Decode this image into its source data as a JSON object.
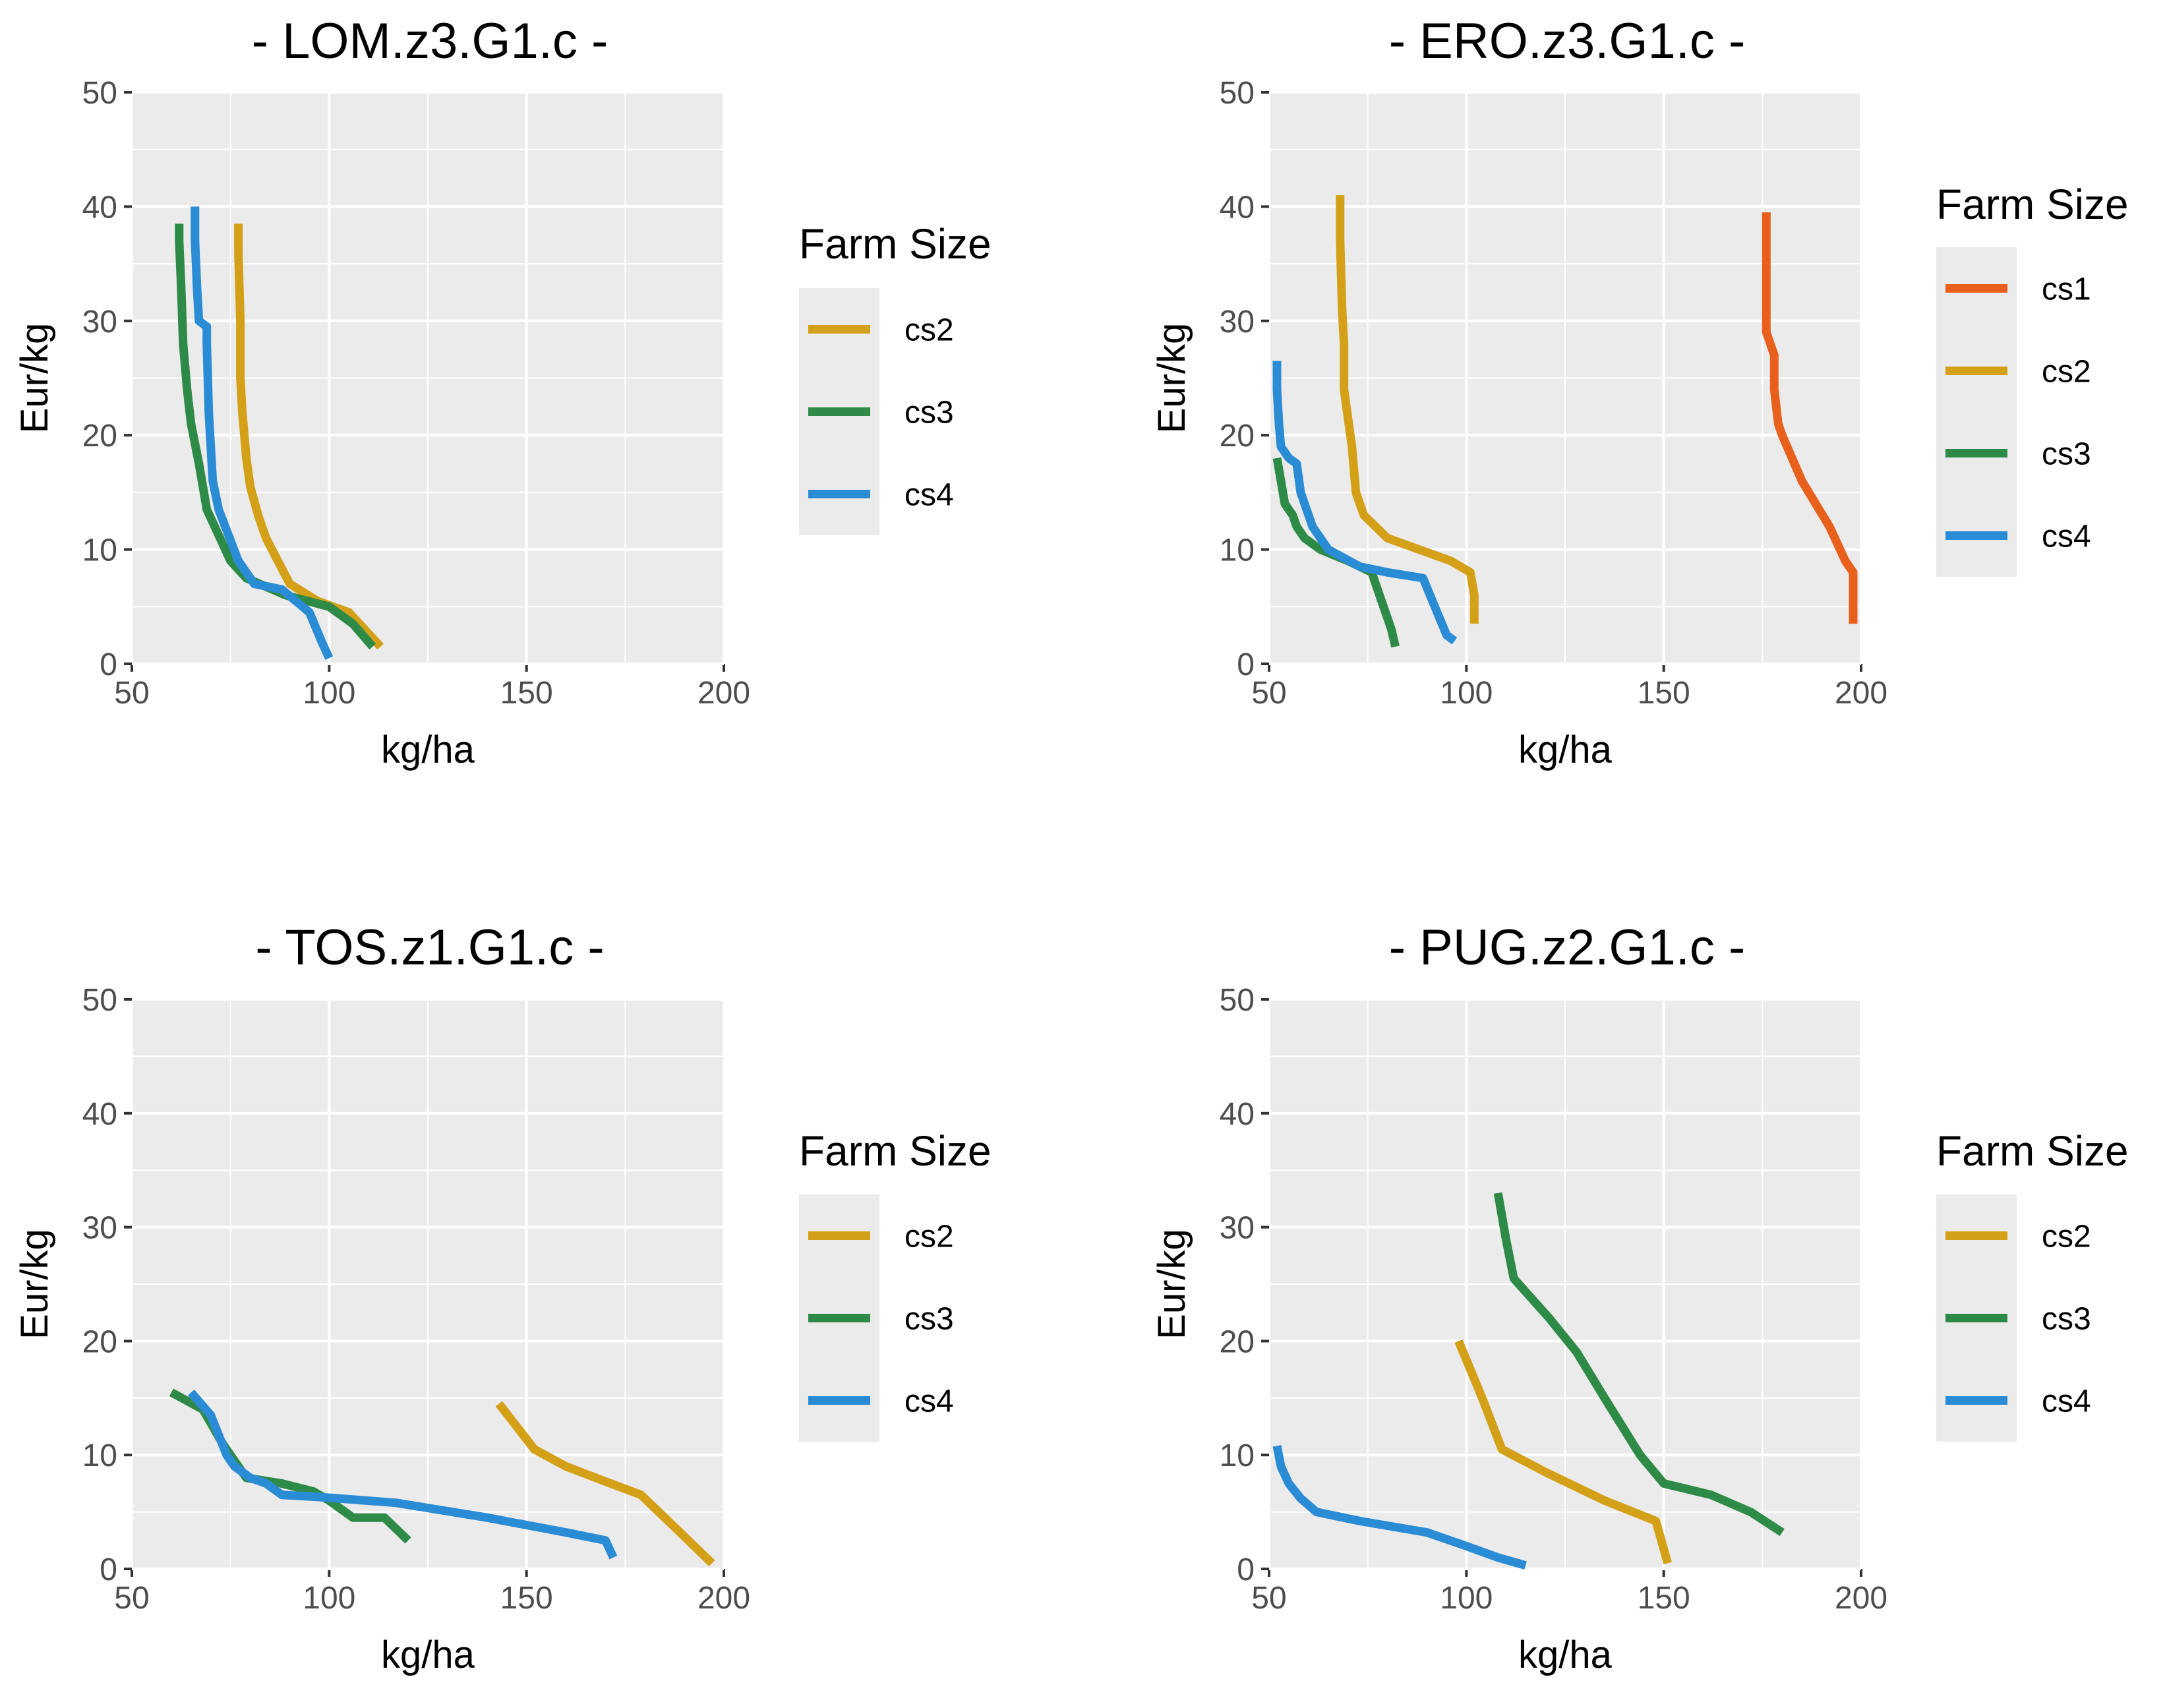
{
  "colors": {
    "cs1": "#E8601C",
    "cs2": "#D4A017",
    "cs3": "#2E8B47",
    "cs4": "#2B8CD6",
    "panel": "#EBEBEB",
    "grid": "#FFFFFF"
  },
  "chart_data": [
    {
      "type": "line",
      "title": "- LOM.z3.G1.c -",
      "xlabel": "kg/ha",
      "ylabel": "Eur/kg",
      "xlim": [
        50,
        200
      ],
      "ylim": [
        0,
        50
      ],
      "xticks": [
        "50",
        "100",
        "150",
        "200"
      ],
      "yticks": [
        "0",
        "10",
        "20",
        "30",
        "40",
        "50"
      ],
      "legend_title": "Farm Size",
      "series": [
        {
          "name": "cs2",
          "points": [
            [
              77,
              38.5
            ],
            [
              77,
              36
            ],
            [
              77.5,
              30
            ],
            [
              77.5,
              25
            ],
            [
              78,
              22
            ],
            [
              79,
              18
            ],
            [
              80,
              15.5
            ],
            [
              82,
              13
            ],
            [
              84,
              11
            ],
            [
              90,
              7
            ],
            [
              97,
              5.5
            ],
            [
              105,
              4.5
            ],
            [
              113,
              1.5
            ]
          ]
        },
        {
          "name": "cs3",
          "points": [
            [
              62,
              38.5
            ],
            [
              62,
              37
            ],
            [
              62.5,
              33
            ],
            [
              63,
              28
            ],
            [
              64,
              24
            ],
            [
              65,
              21
            ],
            [
              67,
              17.5
            ],
            [
              69,
              13.5
            ],
            [
              71,
              12
            ],
            [
              75,
              9
            ],
            [
              79,
              7.5
            ],
            [
              89,
              6
            ],
            [
              100,
              5
            ],
            [
              106,
              3.5
            ],
            [
              111,
              1.5
            ]
          ]
        },
        {
          "name": "cs4",
          "points": [
            [
              66,
              40
            ],
            [
              66,
              37
            ],
            [
              66.5,
              33
            ],
            [
              67,
              30
            ],
            [
              69,
              29.5
            ],
            [
              69,
              28
            ],
            [
              69.5,
              22
            ],
            [
              70,
              19
            ],
            [
              70.5,
              16
            ],
            [
              72,
              13.5
            ],
            [
              77,
              9
            ],
            [
              81,
              7
            ],
            [
              88,
              6.5
            ],
            [
              95,
              4.5
            ],
            [
              98,
              2
            ],
            [
              100,
              0.5
            ]
          ]
        }
      ]
    },
    {
      "type": "line",
      "title": "- ERO.z3.G1.c -",
      "xlabel": "kg/ha",
      "ylabel": "Eur/kg",
      "xlim": [
        50,
        200
      ],
      "ylim": [
        0,
        50
      ],
      "xticks": [
        "50",
        "100",
        "150",
        "200"
      ],
      "yticks": [
        "0",
        "10",
        "20",
        "30",
        "40",
        "50"
      ],
      "legend_title": "Farm Size",
      "series": [
        {
          "name": "cs1",
          "points": [
            [
              176,
              39.5
            ],
            [
              176,
              35
            ],
            [
              176,
              29
            ],
            [
              178,
              27
            ],
            [
              178,
              24
            ],
            [
              179,
              21
            ],
            [
              180,
              20
            ],
            [
              185,
              16
            ],
            [
              192,
              12
            ],
            [
              196,
              9
            ],
            [
              198,
              8
            ],
            [
              198,
              6
            ],
            [
              198,
              3.5
            ]
          ]
        },
        {
          "name": "cs2",
          "points": [
            [
              68,
              41
            ],
            [
              68,
              37
            ],
            [
              68.5,
              31
            ],
            [
              69,
              28
            ],
            [
              69,
              24
            ],
            [
              71,
              19
            ],
            [
              72,
              15
            ],
            [
              74,
              13
            ],
            [
              80,
              11
            ],
            [
              88,
              10
            ],
            [
              96,
              9
            ],
            [
              101,
              8
            ],
            [
              102,
              6
            ],
            [
              102,
              3.5
            ]
          ]
        },
        {
          "name": "cs3",
          "points": [
            [
              52,
              18
            ],
            [
              53,
              16
            ],
            [
              54,
              14
            ],
            [
              56,
              13
            ],
            [
              57,
              12
            ],
            [
              59,
              11
            ],
            [
              63,
              10
            ],
            [
              70,
              9
            ],
            [
              76,
              8
            ],
            [
              78,
              6
            ],
            [
              80,
              4
            ],
            [
              81,
              3
            ],
            [
              82,
              1.5
            ]
          ]
        },
        {
          "name": "cs4",
          "points": [
            [
              52,
              26.5
            ],
            [
              52,
              24
            ],
            [
              52.5,
              21
            ],
            [
              53,
              19
            ],
            [
              55,
              18
            ],
            [
              57,
              17.5
            ],
            [
              58,
              15
            ],
            [
              61,
              12
            ],
            [
              65,
              10
            ],
            [
              73,
              8.5
            ],
            [
              80,
              8
            ],
            [
              89,
              7.5
            ],
            [
              92,
              5
            ],
            [
              95,
              2.5
            ],
            [
              97,
              2
            ]
          ]
        }
      ]
    },
    {
      "type": "line",
      "title": "- TOS.z1.G1.c -",
      "xlabel": "kg/ha",
      "ylabel": "Eur/kg",
      "xlim": [
        50,
        200
      ],
      "ylim": [
        0,
        50
      ],
      "xticks": [
        "50",
        "100",
        "150",
        "200"
      ],
      "yticks": [
        "0",
        "10",
        "20",
        "30",
        "40",
        "50"
      ],
      "legend_title": "Farm Size",
      "series": [
        {
          "name": "cs2",
          "points": [
            [
              143,
              14.5
            ],
            [
              152,
              10.5
            ],
            [
              160,
              9
            ],
            [
              169,
              7.8
            ],
            [
              179,
              6.5
            ],
            [
              188,
              3.5
            ],
            [
              197,
              0.5
            ]
          ]
        },
        {
          "name": "cs3",
          "points": [
            [
              60,
              15.5
            ],
            [
              68,
              14
            ],
            [
              73,
              11
            ],
            [
              79,
              8
            ],
            [
              88,
              7.5
            ],
            [
              96,
              6.8
            ],
            [
              100,
              6
            ],
            [
              106,
              4.5
            ],
            [
              114,
              4.5
            ],
            [
              120,
              2.5
            ]
          ]
        },
        {
          "name": "cs4",
          "points": [
            [
              65,
              15.5
            ],
            [
              70,
              13.5
            ],
            [
              74,
              10
            ],
            [
              76,
              9
            ],
            [
              80,
              8
            ],
            [
              84,
              7.5
            ],
            [
              88,
              6.5
            ],
            [
              98,
              6.3
            ],
            [
              117,
              5.8
            ],
            [
              140,
              4.5
            ],
            [
              160,
              3.2
            ],
            [
              170,
              2.5
            ],
            [
              172,
              1
            ]
          ]
        }
      ]
    },
    {
      "type": "line",
      "title": "- PUG.z2.G1.c -",
      "xlabel": "kg/ha",
      "ylabel": "Eur/kg",
      "xlim": [
        50,
        200
      ],
      "ylim": [
        0,
        50
      ],
      "xticks": [
        "50",
        "100",
        "150",
        "200"
      ],
      "yticks": [
        "0",
        "10",
        "20",
        "30",
        "40",
        "50"
      ],
      "legend_title": "Farm Size",
      "series": [
        {
          "name": "cs2",
          "points": [
            [
              98,
              20
            ],
            [
              104,
              15
            ],
            [
              109,
              10.5
            ],
            [
              120,
              8.5
            ],
            [
              135,
              6
            ],
            [
              148,
              4.2
            ],
            [
              151,
              0.5
            ]
          ]
        },
        {
          "name": "cs3",
          "points": [
            [
              108,
              33
            ],
            [
              110,
              29
            ],
            [
              112,
              25.5
            ],
            [
              121,
              22
            ],
            [
              128,
              19
            ],
            [
              135,
              15
            ],
            [
              144,
              10
            ],
            [
              150,
              7.5
            ],
            [
              162,
              6.5
            ],
            [
              172,
              5
            ],
            [
              180,
              3.2
            ]
          ]
        },
        {
          "name": "cs4",
          "points": [
            [
              52,
              10.8
            ],
            [
              53,
              9
            ],
            [
              55,
              7.5
            ],
            [
              58,
              6.2
            ],
            [
              62,
              5
            ],
            [
              73,
              4.2
            ],
            [
              90,
              3.2
            ],
            [
              100,
              2
            ],
            [
              108,
              1
            ],
            [
              115,
              0.3
            ]
          ]
        }
      ]
    }
  ]
}
